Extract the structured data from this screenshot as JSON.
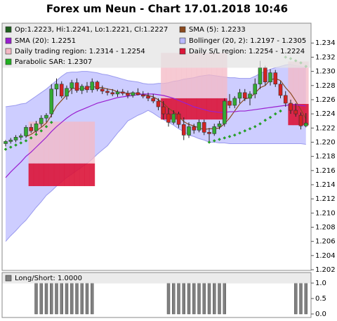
{
  "chart_data": {
    "type": "candlestick",
    "title": "Forex um Neun - Chart 17.01.2018 10:46",
    "ylim": [
      1.2019,
      1.2368
    ],
    "yticks": [
      1.202,
      1.204,
      1.206,
      1.208,
      {
        "value": 1.21,
        "label": "1.210"
      },
      1.212,
      1.214,
      1.216,
      1.218,
      {
        "value": 1.22,
        "label": "1.220"
      },
      1.222,
      1.224,
      1.226,
      1.228,
      {
        "value": 1.23,
        "label": "1.230"
      },
      1.232,
      1.234
    ],
    "ohlc": {
      "name": "Op:1.2223, Hi:1.2241, Lo:1.2221, Cl:1.2227",
      "color": "#1f5f1f",
      "up_color": "#33aa33",
      "down_color": "#d42222",
      "values": [
        [
          1.2198,
          1.2203,
          1.2194,
          1.2201
        ],
        [
          1.2201,
          1.2206,
          1.2198,
          1.2203
        ],
        [
          1.2203,
          1.221,
          1.22,
          1.2207
        ],
        [
          1.2207,
          1.2212,
          1.2203,
          1.2209
        ],
        [
          1.2209,
          1.2224,
          1.2206,
          1.2221
        ],
        [
          1.2221,
          1.2226,
          1.2213,
          1.2216
        ],
        [
          1.2216,
          1.223,
          1.2212,
          1.2226
        ],
        [
          1.2226,
          1.2238,
          1.2222,
          1.2234
        ],
        [
          1.2234,
          1.2241,
          1.2228,
          1.2238
        ],
        [
          1.224,
          1.2282,
          1.2235,
          1.2275
        ],
        [
          1.2275,
          1.229,
          1.2265,
          1.2282
        ],
        [
          1.2282,
          1.2286,
          1.2262,
          1.2265
        ],
        [
          1.2265,
          1.228,
          1.226,
          1.2276
        ],
        [
          1.2276,
          1.2288,
          1.2268,
          1.2284
        ],
        [
          1.2284,
          1.229,
          1.227,
          1.2273
        ],
        [
          1.2273,
          1.2282,
          1.2268,
          1.2279
        ],
        [
          1.2279,
          1.2285,
          1.227,
          1.2274
        ],
        [
          1.2274,
          1.229,
          1.227,
          1.2285
        ],
        [
          1.2285,
          1.2287,
          1.2272,
          1.2275
        ],
        [
          1.2275,
          1.228,
          1.2268,
          1.2272
        ],
        [
          1.2272,
          1.2276,
          1.2266,
          1.227
        ],
        [
          1.227,
          1.2275,
          1.2265,
          1.2268
        ],
        [
          1.2268,
          1.2274,
          1.2264,
          1.2271
        ],
        [
          1.2271,
          1.2275,
          1.2266,
          1.2269
        ],
        [
          1.2269,
          1.2273,
          1.2262,
          1.2266
        ],
        [
          1.2266,
          1.2272,
          1.2263,
          1.227
        ],
        [
          1.227,
          1.2276,
          1.2266,
          1.2267
        ],
        [
          1.2267,
          1.2272,
          1.2262,
          1.2265
        ],
        [
          1.2265,
          1.227,
          1.2258,
          1.2262
        ],
        [
          1.2262,
          1.2268,
          1.2255,
          1.2258
        ],
        [
          1.2258,
          1.2262,
          1.2245,
          1.225
        ],
        [
          1.225,
          1.2258,
          1.2232,
          1.224
        ],
        [
          1.224,
          1.2248,
          1.2222,
          1.2228
        ],
        [
          1.2228,
          1.2245,
          1.2225,
          1.224
        ],
        [
          1.224,
          1.2243,
          1.222,
          1.2225
        ],
        [
          1.2225,
          1.2235,
          1.2203,
          1.221
        ],
        [
          1.221,
          1.2228,
          1.2206,
          1.2222
        ],
        [
          1.2222,
          1.2226,
          1.2212,
          1.2217
        ],
        [
          1.2217,
          1.2232,
          1.2214,
          1.2228
        ],
        [
          1.2228,
          1.2232,
          1.221,
          1.2214
        ],
        [
          1.2214,
          1.222,
          1.22,
          1.2212
        ],
        [
          1.2212,
          1.2226,
          1.2209,
          1.2222
        ],
        [
          1.2222,
          1.223,
          1.2218,
          1.2226
        ],
        [
          1.2226,
          1.2262,
          1.2222,
          1.2258
        ],
        [
          1.2258,
          1.2268,
          1.2248,
          1.2252
        ],
        [
          1.2252,
          1.2265,
          1.2248,
          1.2262
        ],
        [
          1.2262,
          1.2275,
          1.2255,
          1.227
        ],
        [
          1.227,
          1.2275,
          1.2258,
          1.2262
        ],
        [
          1.2262,
          1.2272,
          1.2252,
          1.2268
        ],
        [
          1.2268,
          1.229,
          1.2262,
          1.2282
        ],
        [
          1.2282,
          1.2315,
          1.2275,
          1.2305
        ],
        [
          1.2305,
          1.2308,
          1.228,
          1.2285
        ],
        [
          1.2285,
          1.2303,
          1.228,
          1.2298
        ],
        [
          1.2298,
          1.2302,
          1.2278,
          1.2282
        ],
        [
          1.2282,
          1.2286,
          1.2262,
          1.2266
        ],
        [
          1.2266,
          1.2272,
          1.225,
          1.2255
        ],
        [
          1.2255,
          1.226,
          1.224,
          1.2245
        ],
        [
          1.2245,
          1.2255,
          1.2236,
          1.224
        ],
        [
          1.2238,
          1.2242,
          1.2218,
          1.2223
        ],
        [
          1.2223,
          1.2241,
          1.2221,
          1.2227
        ]
      ]
    },
    "sma": [
      {
        "name": "SMA (5): 1.2233",
        "color": "#8b4a1e",
        "values": [
          null,
          null,
          null,
          null,
          1.2208,
          1.2211,
          1.2216,
          1.2221,
          1.2227,
          1.2238,
          1.2251,
          1.2259,
          1.2267,
          1.2276,
          1.2276,
          1.2275,
          1.2277,
          1.2279,
          1.2277,
          1.2277,
          1.2275,
          1.2274,
          1.2271,
          1.227,
          1.2269,
          1.2269,
          1.2269,
          1.2267,
          1.2266,
          1.2264,
          1.226,
          1.2255,
          1.2248,
          1.2243,
          1.2237,
          1.2229,
          1.2225,
          1.2223,
          1.222,
          1.2218,
          1.2219,
          1.2219,
          1.222,
          1.2226,
          1.2234,
          1.2244,
          1.2254,
          1.2261,
          1.2263,
          1.2269,
          1.2277,
          1.228,
          1.2288,
          1.229,
          1.2287,
          1.2277,
          1.2269,
          1.2258,
          1.2246,
          1.2233
        ]
      },
      {
        "name": "SMA (20): 1.2251",
        "color": "#9a1fd0",
        "values": [
          1.215,
          1.2158,
          1.2165,
          1.2172,
          1.218,
          1.2186,
          1.2193,
          1.22,
          1.2207,
          1.2215,
          1.2222,
          1.2228,
          1.2234,
          1.2239,
          1.2243,
          1.2246,
          1.2249,
          1.2252,
          1.2255,
          1.2257,
          1.2259,
          1.2261,
          1.2263,
          1.2264,
          1.2265,
          1.2266,
          1.2267,
          1.2268,
          1.2268,
          1.2268,
          1.2267,
          1.2266,
          1.2264,
          1.2262,
          1.2259,
          1.2256,
          1.2253,
          1.225,
          1.2248,
          1.2246,
          1.2244,
          1.2243,
          1.2242,
          1.2242,
          1.2243,
          1.2243,
          1.2244,
          1.2244,
          1.2245,
          1.2246,
          1.2247,
          1.2248,
          1.2249,
          1.225,
          1.2251,
          1.2252,
          1.2253,
          1.2253,
          1.2252,
          1.2251
        ]
      }
    ],
    "bollinger": {
      "name": "Bollinger (20, 2): 1.2197 - 1.2305",
      "color": "#b8b8ff",
      "upper": [
        1.225,
        1.2251,
        1.2252,
        1.2254,
        1.2255,
        1.226,
        1.2265,
        1.227,
        1.2275,
        1.2281,
        1.2287,
        1.2293,
        1.2298,
        1.2299,
        1.2299,
        1.23,
        1.23,
        1.2299,
        1.2298,
        1.2296,
        1.2295,
        1.2293,
        1.2291,
        1.2289,
        1.2287,
        1.2286,
        1.2285,
        1.2283,
        1.2282,
        1.2282,
        1.2283,
        1.2283,
        1.2284,
        1.2286,
        1.2287,
        1.2289,
        1.229,
        1.2291,
        1.2293,
        1.2294,
        1.2295,
        1.2294,
        1.2293,
        1.2292,
        1.2291,
        1.2291,
        1.229,
        1.229,
        1.229,
        1.2293,
        1.2297,
        1.23,
        1.2303,
        1.2305,
        1.2307,
        1.2309,
        1.231,
        1.2308,
        1.2307,
        1.2305
      ],
      "lower": [
        1.206,
        1.2068,
        1.2075,
        1.2083,
        1.209,
        1.2099,
        1.2108,
        1.2116,
        1.2125,
        1.2131,
        1.2138,
        1.2144,
        1.215,
        1.2155,
        1.216,
        1.2165,
        1.217,
        1.2176,
        1.2183,
        1.2189,
        1.2195,
        1.2204,
        1.2213,
        1.2221,
        1.223,
        1.2234,
        1.2238,
        1.2241,
        1.2245,
        1.2241,
        1.2236,
        1.2232,
        1.2228,
        1.2224,
        1.2219,
        1.2215,
        1.221,
        1.2208,
        1.2205,
        1.2203,
        1.22,
        1.22,
        1.2199,
        1.2199,
        1.2198,
        1.2198,
        1.2198,
        1.2198,
        1.2198,
        1.2198,
        1.2198,
        1.2198,
        1.2198,
        1.2198,
        1.2198,
        1.2198,
        1.2198,
        1.2198,
        1.2198,
        1.2197
      ]
    },
    "regions": {
      "trading_name": "Daily trading region: 1.2314 - 1.2254",
      "trading_color": "#f4b8c4",
      "sl_name": "Daily S/L region: 1.2254 - 1.2224",
      "sl_color": "#dc1438",
      "values": [
        null,
        null,
        null,
        null,
        null,
        [
          1.2229,
          1.217,
          1.217,
          1.2138
        ],
        [
          1.2229,
          1.217,
          1.217,
          1.2138
        ],
        [
          1.2229,
          1.217,
          1.217,
          1.2138
        ],
        [
          1.2229,
          1.217,
          1.217,
          1.2138
        ],
        [
          1.2229,
          1.217,
          1.217,
          1.2138
        ],
        [
          1.2229,
          1.217,
          1.217,
          1.2138
        ],
        [
          1.2229,
          1.217,
          1.217,
          1.2138
        ],
        [
          1.2229,
          1.217,
          1.217,
          1.2138
        ],
        [
          1.2229,
          1.217,
          1.217,
          1.2138
        ],
        [
          1.2229,
          1.217,
          1.217,
          1.2138
        ],
        [
          1.2229,
          1.217,
          1.217,
          1.2138
        ],
        [
          1.2229,
          1.217,
          1.217,
          1.2138
        ],
        [
          1.2229,
          1.217,
          1.217,
          1.2138
        ],
        null,
        null,
        null,
        null,
        null,
        null,
        null,
        null,
        null,
        null,
        null,
        null,
        null,
        [
          1.2326,
          1.2262,
          1.2262,
          1.2232
        ],
        [
          1.2326,
          1.2262,
          1.2262,
          1.2232
        ],
        [
          1.2326,
          1.2262,
          1.2262,
          1.2232
        ],
        [
          1.2326,
          1.2262,
          1.2262,
          1.2232
        ],
        [
          1.2326,
          1.2262,
          1.2262,
          1.2232
        ],
        [
          1.2326,
          1.2262,
          1.2262,
          1.2232
        ],
        [
          1.2326,
          1.2262,
          1.2262,
          1.2232
        ],
        [
          1.2326,
          1.2262,
          1.2262,
          1.2232
        ],
        [
          1.2326,
          1.2262,
          1.2262,
          1.2232
        ],
        [
          1.2326,
          1.2262,
          1.2262,
          1.2232
        ],
        [
          1.2326,
          1.2262,
          1.2262,
          1.2232
        ],
        [
          1.2326,
          1.2262,
          1.2262,
          1.2232
        ],
        [
          1.2326,
          1.2262,
          1.2262,
          1.2232
        ],
        null,
        null,
        null,
        null,
        null,
        null,
        null,
        null,
        null,
        null,
        null,
        null,
        [
          1.2314,
          1.2254,
          1.2254,
          1.2224
        ],
        [
          1.2314,
          1.2254,
          1.2254,
          1.2224
        ],
        [
          1.2314,
          1.2254,
          1.2254,
          1.2224
        ],
        [
          1.2314,
          1.2254,
          1.2254,
          1.2224
        ]
      ]
    },
    "sar": {
      "name": "Parabolic SAR: 1.2307",
      "color": "#22b022",
      "values": [
        1.219,
        1.2193,
        1.2196,
        1.2199,
        1.2202,
        1.2206,
        1.2211,
        1.2216,
        1.2222,
        1.2228,
        null,
        null,
        null,
        null,
        null,
        null,
        null,
        null,
        null,
        null,
        null,
        null,
        null,
        null,
        null,
        null,
        null,
        null,
        null,
        null,
        null,
        null,
        null,
        null,
        null,
        null,
        null,
        null,
        null,
        null,
        1.22,
        1.2202,
        1.2204,
        1.2206,
        1.2208,
        1.221,
        1.2213,
        1.2216,
        1.2219,
        1.2222,
        1.2226,
        1.2231,
        1.2235,
        1.224,
        1.2244,
        1.232,
        1.2318,
        1.2315,
        1.2312,
        1.2307
      ]
    },
    "indicator": {
      "name": "Long/Short: 1.0000",
      "color": "#808080",
      "ylim": [
        0,
        1
      ],
      "yticks": [
        {
          "value": 0,
          "label": "0.0"
        },
        0.5,
        {
          "value": 1,
          "label": "1.0"
        }
      ],
      "values": [
        0,
        0,
        0,
        0,
        0,
        0,
        1,
        1,
        1,
        1,
        1,
        1,
        1,
        1,
        1,
        1,
        1,
        1,
        0,
        0,
        0,
        0,
        0,
        0,
        0,
        0,
        0,
        0,
        0,
        0,
        0,
        0,
        1,
        1,
        1,
        1,
        1,
        1,
        1,
        1,
        1,
        1,
        1,
        1,
        0,
        0,
        0,
        0,
        0,
        0,
        0,
        0,
        0,
        0,
        0,
        0,
        0,
        1,
        1,
        1
      ]
    }
  }
}
